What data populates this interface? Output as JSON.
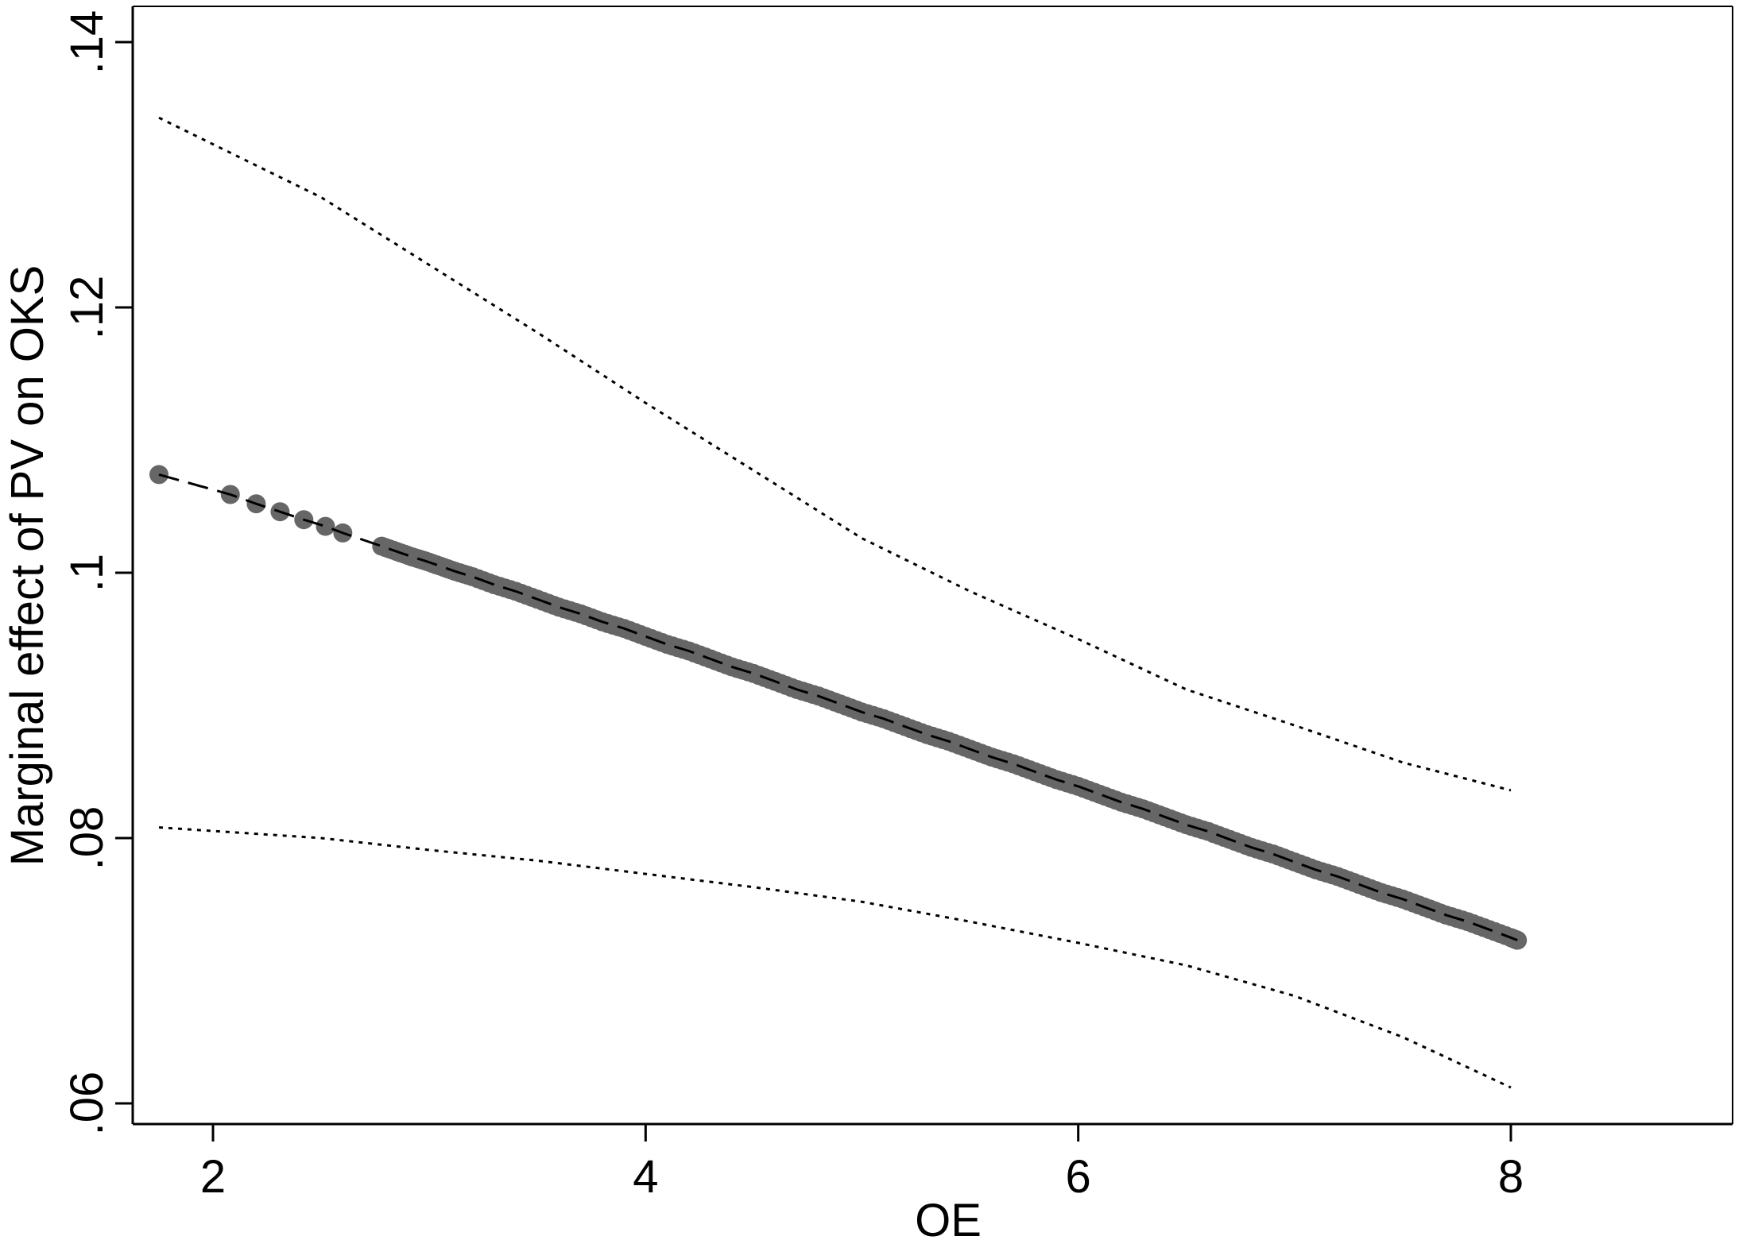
{
  "chart_data": {
    "type": "line",
    "title": "",
    "xlabel": "OE",
    "ylabel": "Marginal effect of PV on OKS",
    "xlim": [
      1.7,
      8.05
    ],
    "ylim": [
      0.058,
      0.142
    ],
    "xticks": [
      2,
      4,
      6,
      8
    ],
    "xtick_labels": [
      "2",
      "4",
      "6",
      "8"
    ],
    "yticks": [
      0.06,
      0.08,
      0.1,
      0.12,
      0.14
    ],
    "ytick_labels": [
      ".06",
      ".08",
      ".1",
      ".12",
      ".14"
    ],
    "grid": false,
    "legend": "none",
    "series": [
      {
        "style": "dashed-line-with-markers",
        "x": [
          1.75,
          2.08,
          2.2,
          2.31,
          2.42,
          2.52,
          2.6,
          2.78,
          2.85,
          2.92,
          2.98,
          3.05,
          3.12,
          3.2,
          3.3,
          3.4,
          3.5,
          3.6,
          3.7,
          3.8,
          3.9,
          4.0,
          4.1,
          4.2,
          4.3,
          4.4,
          4.5,
          4.6,
          4.7,
          4.8,
          4.9,
          5.0,
          5.1,
          5.2,
          5.3,
          5.4,
          5.5,
          5.6,
          5.7,
          5.8,
          5.9,
          6.0,
          6.1,
          6.2,
          6.3,
          6.4,
          6.5,
          6.6,
          6.7,
          6.8,
          6.9,
          7.0,
          7.1,
          7.2,
          7.3,
          7.4,
          7.5,
          7.6,
          7.7,
          7.8,
          7.9,
          8.0,
          8.03
        ],
        "y": [
          0.1074,
          0.1059,
          0.1052,
          0.1046,
          0.104,
          0.1035,
          0.103,
          0.102,
          0.1016,
          0.1012,
          0.1009,
          0.1005,
          0.1001,
          0.0997,
          0.0991,
          0.0986,
          0.098,
          0.0974,
          0.0969,
          0.0963,
          0.0958,
          0.0952,
          0.0946,
          0.0941,
          0.0935,
          0.0929,
          0.0924,
          0.0918,
          0.0912,
          0.0907,
          0.0901,
          0.0895,
          0.089,
          0.0884,
          0.0878,
          0.0873,
          0.0867,
          0.0861,
          0.0856,
          0.085,
          0.0844,
          0.0839,
          0.0833,
          0.0827,
          0.0822,
          0.0816,
          0.081,
          0.0805,
          0.0799,
          0.0793,
          0.0788,
          0.0782,
          0.0776,
          0.0771,
          0.0765,
          0.0759,
          0.0754,
          0.0748,
          0.0742,
          0.0737,
          0.0731,
          0.0725,
          0.0723
        ]
      },
      {
        "style": "dotted-line",
        "x": [
          1.75,
          2.5,
          3.0,
          3.5,
          4.0,
          4.5,
          5.0,
          5.5,
          6.0,
          6.5,
          7.0,
          7.5,
          8.0
        ],
        "y": [
          0.1343,
          0.1283,
          0.1232,
          0.1181,
          0.1128,
          0.1077,
          0.1026,
          0.0986,
          0.095,
          0.0912,
          0.0885,
          0.0857,
          0.0836
        ]
      },
      {
        "style": "dotted-line",
        "x": [
          1.75,
          2.5,
          3.0,
          3.5,
          4.0,
          4.5,
          5.0,
          5.5,
          6.0,
          6.5,
          7.0,
          7.5,
          8.0
        ],
        "y": [
          0.0808,
          0.08,
          0.0791,
          0.0783,
          0.0773,
          0.0763,
          0.0752,
          0.0737,
          0.0721,
          0.0704,
          0.0681,
          0.065,
          0.0612
        ]
      }
    ],
    "colors": {
      "marker": "#666666",
      "line": "#000000",
      "axis": "#000000",
      "background": "#ffffff"
    }
  }
}
